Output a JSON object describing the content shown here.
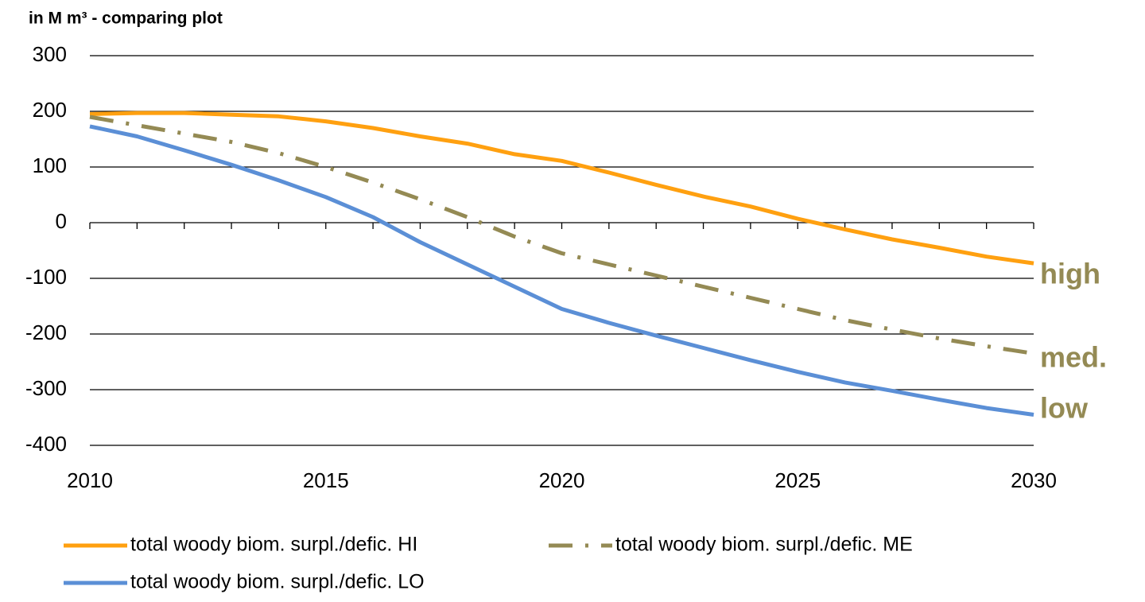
{
  "chart_data": {
    "type": "line",
    "title": "in M m³ - comparing plot",
    "x": [
      2010,
      2011,
      2012,
      2013,
      2014,
      2015,
      2016,
      2017,
      2018,
      2019,
      2020,
      2021,
      2022,
      2023,
      2024,
      2025,
      2026,
      2027,
      2028,
      2029,
      2030
    ],
    "series": [
      {
        "name": "total woody biom. surpl./defic. HI",
        "color": "#ffa010",
        "values": [
          195,
          197,
          197,
          194,
          191,
          182,
          170,
          155,
          142,
          123,
          111,
          90,
          68,
          47,
          29,
          7,
          -12,
          -30,
          -45,
          -61,
          -73
        ]
      },
      {
        "name": "total woody biom. surpl./defic. ME",
        "color": "#948a54",
        "values": [
          190,
          175,
          160,
          145,
          125,
          100,
          72,
          42,
          10,
          -25,
          -55,
          -75,
          -95,
          -115,
          -135,
          -155,
          -175,
          -192,
          -208,
          -222,
          -235
        ]
      },
      {
        "name": "total woody biom. surpl./defic. LO",
        "color": "#5b8fd6",
        "values": [
          173,
          155,
          130,
          104,
          76,
          46,
          10,
          -35,
          -75,
          -115,
          -155,
          -180,
          -203,
          -225,
          -247,
          -268,
          -287,
          -302,
          -318,
          -333,
          -345
        ]
      }
    ],
    "xlim": [
      2010,
      2030
    ],
    "xticks": [
      2010,
      2015,
      2020,
      2025,
      2030
    ],
    "ylim": [
      -400,
      300
    ],
    "yticks": [
      -400,
      -300,
      -200,
      -100,
      0,
      100,
      200,
      300
    ],
    "grid": true,
    "annotations": [
      "high",
      "med.",
      "low"
    ],
    "annotation_color": "#948a54"
  }
}
